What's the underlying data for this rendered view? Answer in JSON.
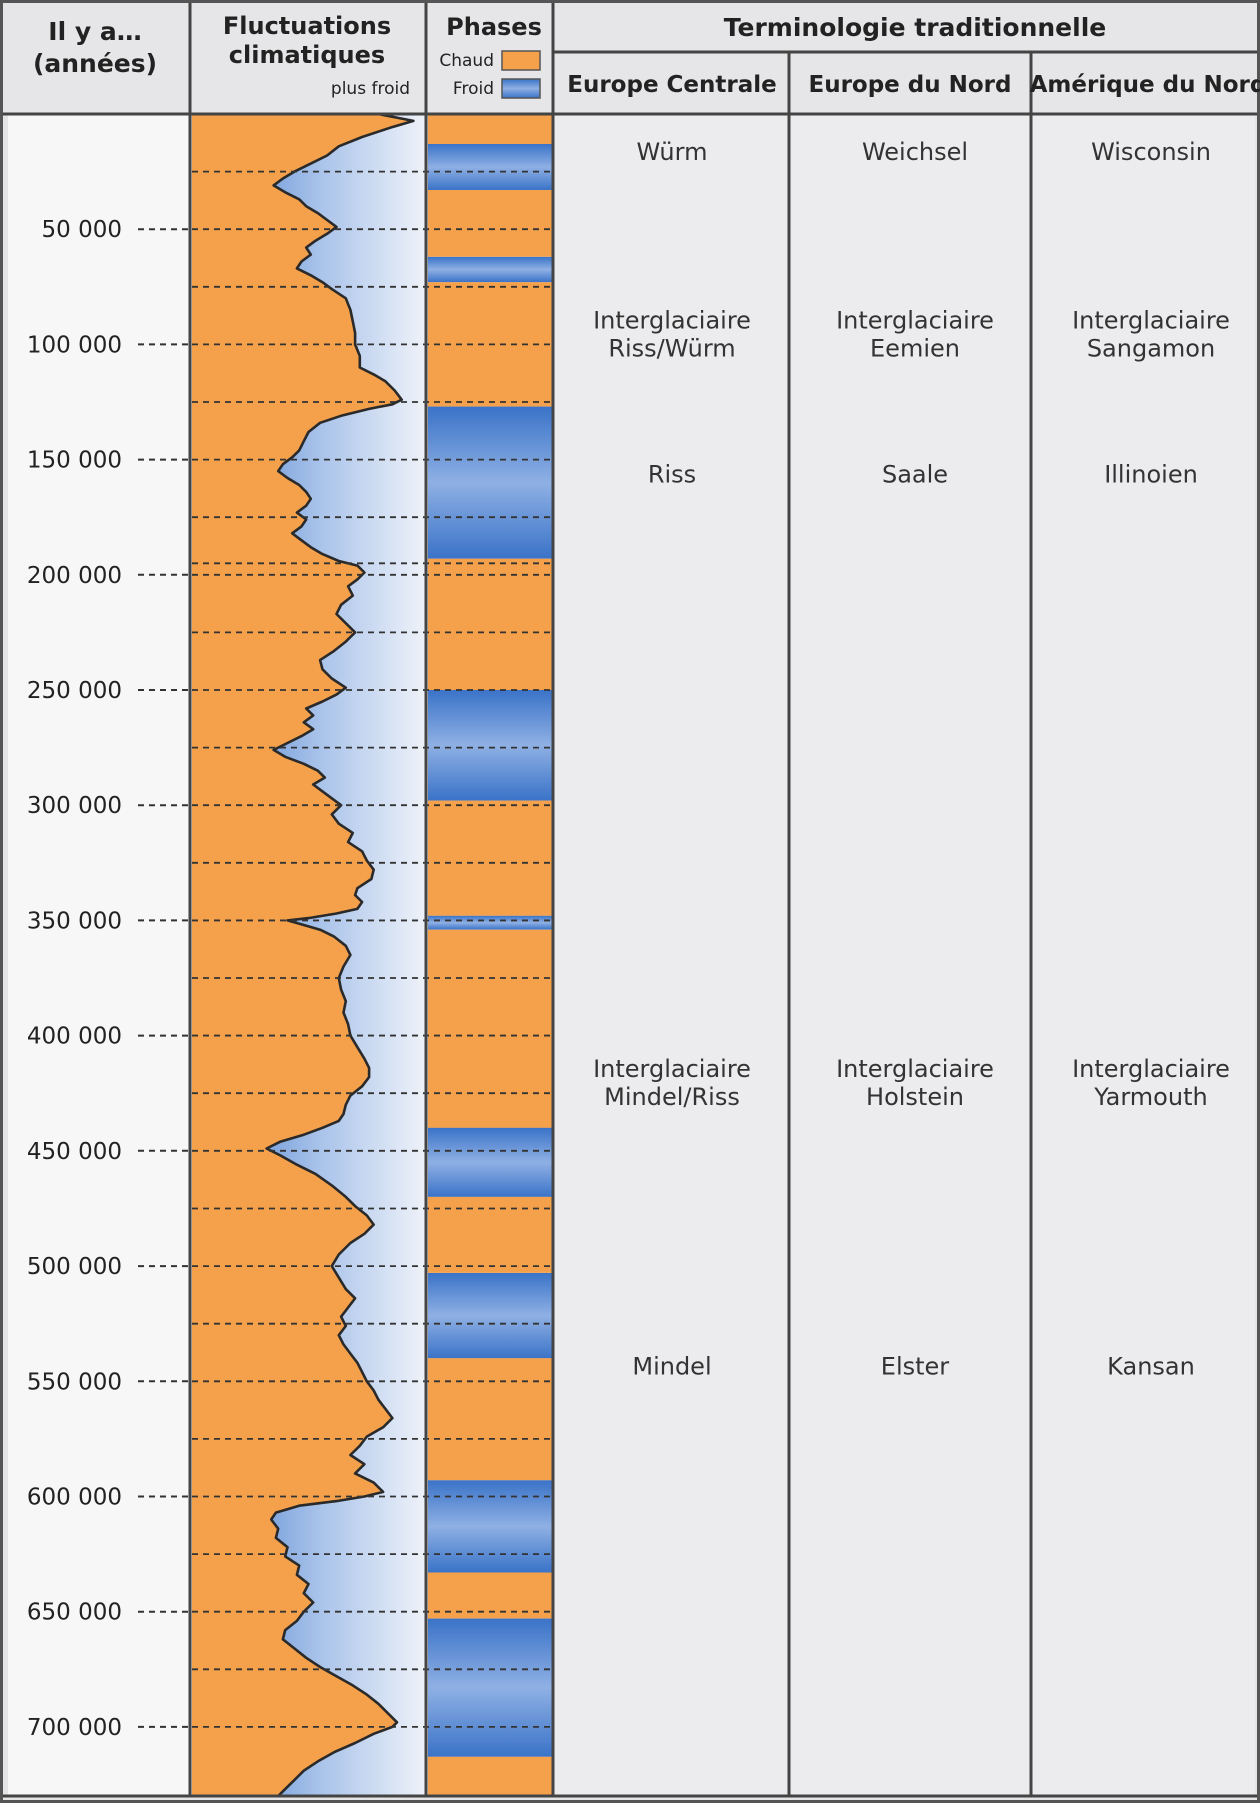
{
  "headers": {
    "age_line1": "Il y a…",
    "age_line2": "(années)",
    "fluct_line1": "Fluctuations",
    "fluct_line2": "climatiques",
    "fluct_sub": "plus froid",
    "phases": "Phases",
    "terminology": "Terminologie traditionnelle"
  },
  "legend": [
    {
      "label": "Chaud",
      "color": "#f5a14b"
    },
    {
      "label": "Froid",
      "color": "#5b8fd6"
    }
  ],
  "regions": [
    {
      "name": "Europe Centrale"
    },
    {
      "name": "Europe du Nord"
    },
    {
      "name": "Amérique du Nord"
    }
  ],
  "colors": {
    "warm": "#f5a14b",
    "cold_dark": "#4a7fd0",
    "cold_light": "#e8eef8",
    "panel": "#eaeaec",
    "frame": "#444444"
  },
  "chart_data": {
    "type": "area",
    "y_unit": "years ago",
    "y_range": [
      0,
      730000
    ],
    "y_ticks": [
      {
        "value": 50000,
        "label": "50 000"
      },
      {
        "value": 100000,
        "label": "100 000"
      },
      {
        "value": 150000,
        "label": "150 000"
      },
      {
        "value": 200000,
        "label": "200 000"
      },
      {
        "value": 250000,
        "label": "250 000"
      },
      {
        "value": 300000,
        "label": "300 000"
      },
      {
        "value": 350000,
        "label": "350 000"
      },
      {
        "value": 400000,
        "label": "400 000"
      },
      {
        "value": 450000,
        "label": "450 000"
      },
      {
        "value": 500000,
        "label": "500 000"
      },
      {
        "value": 550000,
        "label": "550 000"
      },
      {
        "value": 600000,
        "label": "600 000"
      },
      {
        "value": 650000,
        "label": "650 000"
      },
      {
        "value": 700000,
        "label": "700 000"
      }
    ],
    "boundaries": [
      25000,
      75000,
      125000,
      175000,
      195000,
      225000,
      275000,
      325000,
      350000,
      375000,
      400000,
      425000,
      475000,
      525000,
      575000,
      625000,
      675000
    ],
    "climate_curve": {
      "description": "position of the warm/cold boundary, 0 = warmest (left), 1 = coldest (right)",
      "points": [
        [
          0,
          0.8
        ],
        [
          3000,
          0.95
        ],
        [
          6000,
          0.85
        ],
        [
          10000,
          0.73
        ],
        [
          14000,
          0.63
        ],
        [
          18000,
          0.58
        ],
        [
          22000,
          0.5
        ],
        [
          25000,
          0.44
        ],
        [
          28000,
          0.39
        ],
        [
          31000,
          0.35
        ],
        [
          34000,
          0.4
        ],
        [
          37000,
          0.46
        ],
        [
          40000,
          0.49
        ],
        [
          43000,
          0.54
        ],
        [
          46000,
          0.58
        ],
        [
          49000,
          0.62
        ],
        [
          52000,
          0.58
        ],
        [
          55000,
          0.53
        ],
        [
          58000,
          0.49
        ],
        [
          61000,
          0.51
        ],
        [
          64000,
          0.47
        ],
        [
          67000,
          0.45
        ],
        [
          70000,
          0.51
        ],
        [
          73000,
          0.56
        ],
        [
          76000,
          0.6
        ],
        [
          80000,
          0.66
        ],
        [
          85000,
          0.68
        ],
        [
          90000,
          0.69
        ],
        [
          95000,
          0.7
        ],
        [
          100000,
          0.7
        ],
        [
          105000,
          0.72
        ],
        [
          110000,
          0.72
        ],
        [
          113000,
          0.78
        ],
        [
          116000,
          0.83
        ],
        [
          120000,
          0.87
        ],
        [
          124000,
          0.9
        ],
        [
          126000,
          0.86
        ],
        [
          128000,
          0.76
        ],
        [
          131000,
          0.64
        ],
        [
          134000,
          0.55
        ],
        [
          138000,
          0.5
        ],
        [
          142000,
          0.48
        ],
        [
          146000,
          0.46
        ],
        [
          149000,
          0.43
        ],
        [
          152000,
          0.39
        ],
        [
          155000,
          0.37
        ],
        [
          158000,
          0.41
        ],
        [
          161000,
          0.46
        ],
        [
          164000,
          0.49
        ],
        [
          167000,
          0.51
        ],
        [
          170000,
          0.49
        ],
        [
          173000,
          0.45
        ],
        [
          176000,
          0.49
        ],
        [
          179000,
          0.47
        ],
        [
          182000,
          0.43
        ],
        [
          185000,
          0.47
        ],
        [
          188000,
          0.51
        ],
        [
          191000,
          0.56
        ],
        [
          194000,
          0.63
        ],
        [
          196000,
          0.71
        ],
        [
          199000,
          0.74
        ],
        [
          202000,
          0.71
        ],
        [
          205000,
          0.67
        ],
        [
          209000,
          0.69
        ],
        [
          213000,
          0.64
        ],
        [
          217000,
          0.62
        ],
        [
          221000,
          0.66
        ],
        [
          225000,
          0.7
        ],
        [
          229000,
          0.66
        ],
        [
          233000,
          0.61
        ],
        [
          237000,
          0.55
        ],
        [
          241000,
          0.56
        ],
        [
          245000,
          0.6
        ],
        [
          249000,
          0.66
        ],
        [
          252000,
          0.62
        ],
        [
          255000,
          0.56
        ],
        [
          258000,
          0.49
        ],
        [
          261000,
          0.52
        ],
        [
          264000,
          0.48
        ],
        [
          267000,
          0.52
        ],
        [
          270000,
          0.47
        ],
        [
          273000,
          0.41
        ],
        [
          276000,
          0.35
        ],
        [
          279000,
          0.4
        ],
        [
          282000,
          0.48
        ],
        [
          285000,
          0.54
        ],
        [
          288000,
          0.57
        ],
        [
          291000,
          0.52
        ],
        [
          294000,
          0.56
        ],
        [
          297000,
          0.6
        ],
        [
          300000,
          0.64
        ],
        [
          304000,
          0.6
        ],
        [
          308000,
          0.63
        ],
        [
          312000,
          0.69
        ],
        [
          316000,
          0.67
        ],
        [
          320000,
          0.73
        ],
        [
          324000,
          0.75
        ],
        [
          328000,
          0.78
        ],
        [
          332000,
          0.77
        ],
        [
          336000,
          0.71
        ],
        [
          339000,
          0.7
        ],
        [
          342000,
          0.73
        ],
        [
          345000,
          0.71
        ],
        [
          347000,
          0.62
        ],
        [
          349000,
          0.5
        ],
        [
          350000,
          0.41
        ],
        [
          352000,
          0.48
        ],
        [
          354000,
          0.55
        ],
        [
          357000,
          0.61
        ],
        [
          361000,
          0.66
        ],
        [
          365000,
          0.68
        ],
        [
          370000,
          0.65
        ],
        [
          375000,
          0.63
        ],
        [
          380000,
          0.64
        ],
        [
          385000,
          0.66
        ],
        [
          390000,
          0.65
        ],
        [
          395000,
          0.67
        ],
        [
          400000,
          0.68
        ],
        [
          405000,
          0.71
        ],
        [
          410000,
          0.74
        ],
        [
          414000,
          0.76
        ],
        [
          418000,
          0.76
        ],
        [
          422000,
          0.73
        ],
        [
          426000,
          0.68
        ],
        [
          430000,
          0.66
        ],
        [
          434000,
          0.65
        ],
        [
          437000,
          0.63
        ],
        [
          440000,
          0.56
        ],
        [
          443000,
          0.48
        ],
        [
          446000,
          0.38
        ],
        [
          449000,
          0.32
        ],
        [
          452000,
          0.38
        ],
        [
          456000,
          0.45
        ],
        [
          460000,
          0.53
        ],
        [
          465000,
          0.6
        ],
        [
          470000,
          0.66
        ],
        [
          474000,
          0.7
        ],
        [
          478000,
          0.75
        ],
        [
          482000,
          0.78
        ],
        [
          486000,
          0.74
        ],
        [
          490000,
          0.68
        ],
        [
          495000,
          0.63
        ],
        [
          500000,
          0.6
        ],
        [
          505000,
          0.63
        ],
        [
          510000,
          0.66
        ],
        [
          514000,
          0.7
        ],
        [
          518000,
          0.67
        ],
        [
          522000,
          0.64
        ],
        [
          526000,
          0.66
        ],
        [
          530000,
          0.63
        ],
        [
          534000,
          0.65
        ],
        [
          538000,
          0.68
        ],
        [
          542000,
          0.71
        ],
        [
          546000,
          0.73
        ],
        [
          550000,
          0.75
        ],
        [
          554000,
          0.78
        ],
        [
          558000,
          0.8
        ],
        [
          562000,
          0.83
        ],
        [
          566000,
          0.86
        ],
        [
          570000,
          0.82
        ],
        [
          574000,
          0.75
        ],
        [
          578000,
          0.72
        ],
        [
          582000,
          0.68
        ],
        [
          586000,
          0.74
        ],
        [
          590000,
          0.7
        ],
        [
          594000,
          0.78
        ],
        [
          598000,
          0.82
        ],
        [
          600000,
          0.74
        ],
        [
          602000,
          0.62
        ],
        [
          604000,
          0.46
        ],
        [
          607000,
          0.36
        ],
        [
          610000,
          0.34
        ],
        [
          614000,
          0.37
        ],
        [
          618000,
          0.36
        ],
        [
          622000,
          0.41
        ],
        [
          626000,
          0.4
        ],
        [
          630000,
          0.46
        ],
        [
          634000,
          0.45
        ],
        [
          638000,
          0.5
        ],
        [
          642000,
          0.48
        ],
        [
          646000,
          0.52
        ],
        [
          650000,
          0.48
        ],
        [
          654000,
          0.45
        ],
        [
          658000,
          0.4
        ],
        [
          662000,
          0.39
        ],
        [
          666000,
          0.44
        ],
        [
          670000,
          0.49
        ],
        [
          674000,
          0.55
        ],
        [
          678000,
          0.62
        ],
        [
          682000,
          0.69
        ],
        [
          686000,
          0.75
        ],
        [
          690000,
          0.8
        ],
        [
          694000,
          0.84
        ],
        [
          698000,
          0.88
        ],
        [
          700000,
          0.86
        ],
        [
          703000,
          0.78
        ],
        [
          707000,
          0.7
        ],
        [
          711000,
          0.61
        ],
        [
          715000,
          0.54
        ],
        [
          719000,
          0.48
        ],
        [
          723000,
          0.44
        ],
        [
          727000,
          0.4
        ],
        [
          730000,
          0.37
        ]
      ]
    },
    "phases": [
      {
        "from": 0,
        "to": 13000,
        "phase": "Chaud"
      },
      {
        "from": 13000,
        "to": 33000,
        "phase": "Froid"
      },
      {
        "from": 33000,
        "to": 62000,
        "phase": "Chaud"
      },
      {
        "from": 62000,
        "to": 73000,
        "phase": "Froid"
      },
      {
        "from": 73000,
        "to": 127000,
        "phase": "Chaud"
      },
      {
        "from": 127000,
        "to": 193000,
        "phase": "Froid"
      },
      {
        "from": 193000,
        "to": 250000,
        "phase": "Chaud"
      },
      {
        "from": 250000,
        "to": 298000,
        "phase": "Froid"
      },
      {
        "from": 298000,
        "to": 348000,
        "phase": "Chaud"
      },
      {
        "from": 348000,
        "to": 354000,
        "phase": "Froid"
      },
      {
        "from": 354000,
        "to": 440000,
        "phase": "Chaud"
      },
      {
        "from": 440000,
        "to": 470000,
        "phase": "Froid"
      },
      {
        "from": 470000,
        "to": 503000,
        "phase": "Chaud"
      },
      {
        "from": 503000,
        "to": 540000,
        "phase": "Froid"
      },
      {
        "from": 540000,
        "to": 593000,
        "phase": "Chaud"
      },
      {
        "from": 593000,
        "to": 633000,
        "phase": "Froid"
      },
      {
        "from": 633000,
        "to": 653000,
        "phase": "Chaud"
      },
      {
        "from": 653000,
        "to": 713000,
        "phase": "Froid"
      },
      {
        "from": 713000,
        "to": 730000,
        "phase": "Chaud"
      }
    ],
    "periods": [
      {
        "y": 20000,
        "labels": [
          [
            "Würm"
          ],
          [
            "Weichsel"
          ],
          [
            "Wisconsin"
          ]
        ]
      },
      {
        "y": 93000,
        "labels": [
          [
            "Interglaciaire",
            "Riss/Würm"
          ],
          [
            "Interglaciaire",
            "Eemien"
          ],
          [
            "Interglaciaire",
            "Sangamon"
          ]
        ]
      },
      {
        "y": 160000,
        "labels": [
          [
            "Riss"
          ],
          [
            "Saale"
          ],
          [
            "Illinoien"
          ]
        ]
      },
      {
        "y": 418000,
        "labels": [
          [
            "Interglaciaire",
            "Mindel/Riss"
          ],
          [
            "Interglaciaire",
            "Holstein"
          ],
          [
            "Interglaciaire",
            "Yarmouth"
          ]
        ]
      },
      {
        "y": 547000,
        "labels": [
          [
            "Mindel"
          ],
          [
            "Elster"
          ],
          [
            "Kansan"
          ]
        ]
      }
    ]
  }
}
